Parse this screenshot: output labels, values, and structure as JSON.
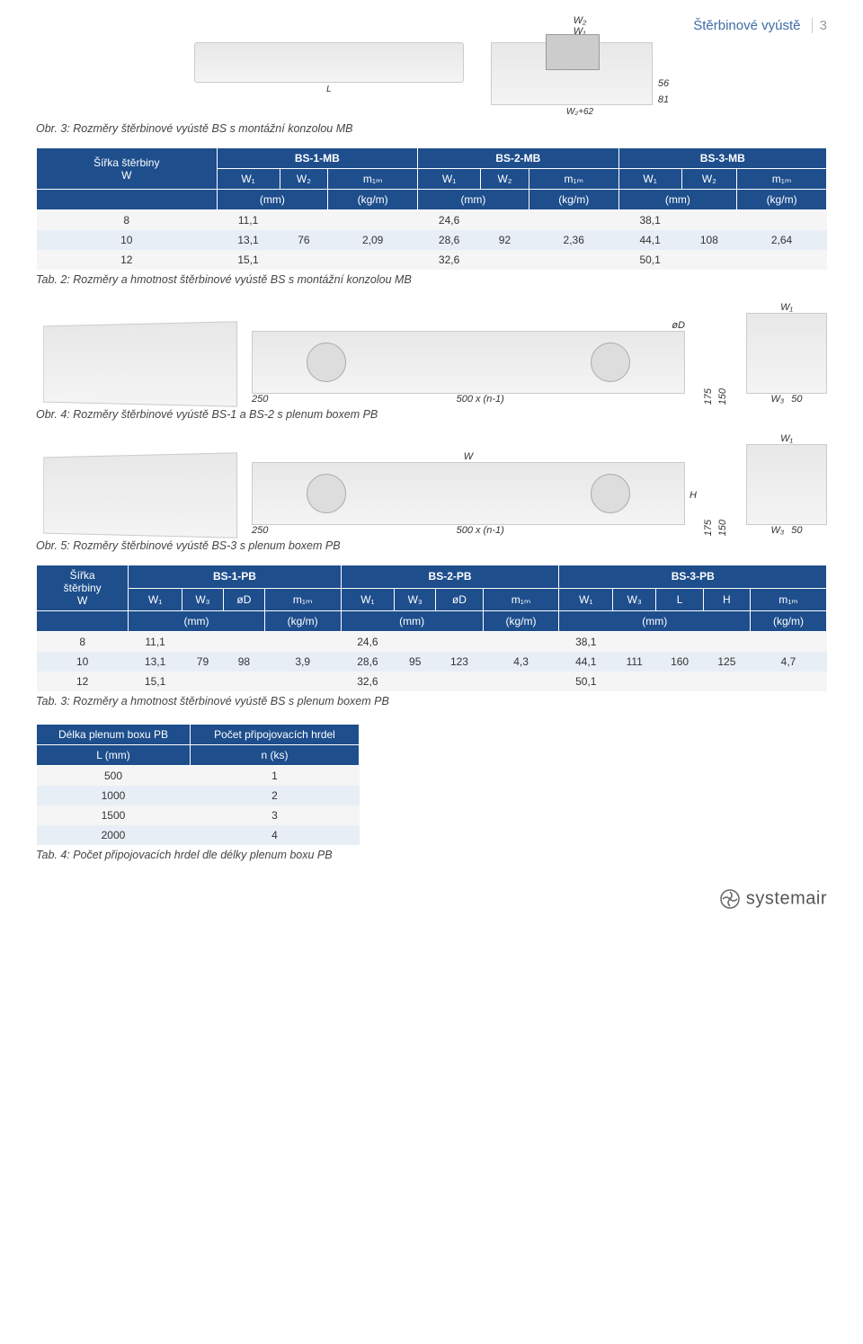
{
  "header": {
    "title": "Štěrbinové vyústě",
    "pagenum": "3"
  },
  "fig1": {
    "labels_top": [
      "W₂",
      "W₁"
    ],
    "dim_right": [
      "56",
      "81"
    ],
    "label_L": "L",
    "label_W262": "W₂+62"
  },
  "captions": {
    "obr3": "Obr. 3: Rozměry štěrbinové vyústě BS s montážní konzolou MB",
    "tab2": "Tab. 2: Rozměry a hmotnost štěrbinové vyústě BS s montážní konzolou MB",
    "obr4": "Obr. 4: Rozměry štěrbinové vyústě BS-1 a BS-2 s plenum boxem PB",
    "obr5": "Obr. 5: Rozměry štěrbinové vyústě BS-3 s plenum boxem PB",
    "tab3": "Tab. 3: Rozměry a hmotnost štěrbinové vyústě BS s plenum boxem PB",
    "tab4": "Tab. 4: Počet připojovacích hrdel dle délky plenum boxu PB"
  },
  "table_mb": {
    "hdr_left": "Šířka štěrbiny\nW",
    "groups": [
      "BS-1-MB",
      "BS-2-MB",
      "BS-3-MB"
    ],
    "sub": [
      "W₁",
      "W₂",
      "m₁ₘ",
      "W₁",
      "W₂",
      "m₁ₘ",
      "W₁",
      "W₂",
      "m₁ₘ"
    ],
    "units": [
      "(mm)",
      "(kg/m)",
      "(mm)",
      "(kg/m)",
      "(mm)",
      "(kg/m)"
    ],
    "rows": [
      [
        "8",
        "11,1",
        "",
        "",
        "24,6",
        "",
        "",
        "38,1",
        "",
        ""
      ],
      [
        "10",
        "13,1",
        "76",
        "2,09",
        "28,6",
        "92",
        "2,36",
        "44,1",
        "108",
        "2,64"
      ],
      [
        "12",
        "15,1",
        "",
        "",
        "32,6",
        "",
        "",
        "50,1",
        "",
        ""
      ]
    ]
  },
  "diag_pb": {
    "left_dims": [
      "175",
      "150"
    ],
    "bottom_labels": [
      "250",
      "500 x (n-1)"
    ],
    "right_labels": [
      "W₃",
      "50"
    ],
    "W1": "W₁",
    "W": "W",
    "oD": "øD",
    "H": "H"
  },
  "table_pb": {
    "hdr_left": "Šířka\nštěrbiny\nW",
    "groups": [
      "BS-1-PB",
      "BS-2-PB",
      "BS-3-PB"
    ],
    "sub1": [
      "W₁",
      "W₃",
      "øD",
      "m₁ₘ"
    ],
    "sub2": [
      "W₁",
      "W₃",
      "øD",
      "m₁ₘ"
    ],
    "sub3": [
      "W₁",
      "W₃",
      "L",
      "H",
      "m₁ₘ"
    ],
    "units": [
      "(mm)",
      "(kg/m)",
      "(mm)",
      "(kg/m)",
      "(mm)",
      "(kg/m)"
    ],
    "rows": [
      [
        "8",
        "11,1",
        "",
        "",
        "",
        "24,6",
        "",
        "",
        "",
        "38,1",
        "",
        "",
        "",
        ""
      ],
      [
        "10",
        "13,1",
        "79",
        "98",
        "3,9",
        "28,6",
        "95",
        "123",
        "4,3",
        "44,1",
        "111",
        "160",
        "125",
        "4,7"
      ],
      [
        "12",
        "15,1",
        "",
        "",
        "",
        "32,6",
        "",
        "",
        "",
        "50,1",
        "",
        "",
        "",
        ""
      ]
    ]
  },
  "table_hrdel": {
    "h1": "Délka plenum boxu PB",
    "h2": "Počet připojovacích hrdel",
    "s1": "L (mm)",
    "s2": "n (ks)",
    "rows": [
      [
        "500",
        "1"
      ],
      [
        "1000",
        "2"
      ],
      [
        "1500",
        "3"
      ],
      [
        "2000",
        "4"
      ]
    ]
  },
  "logo": "systemair"
}
